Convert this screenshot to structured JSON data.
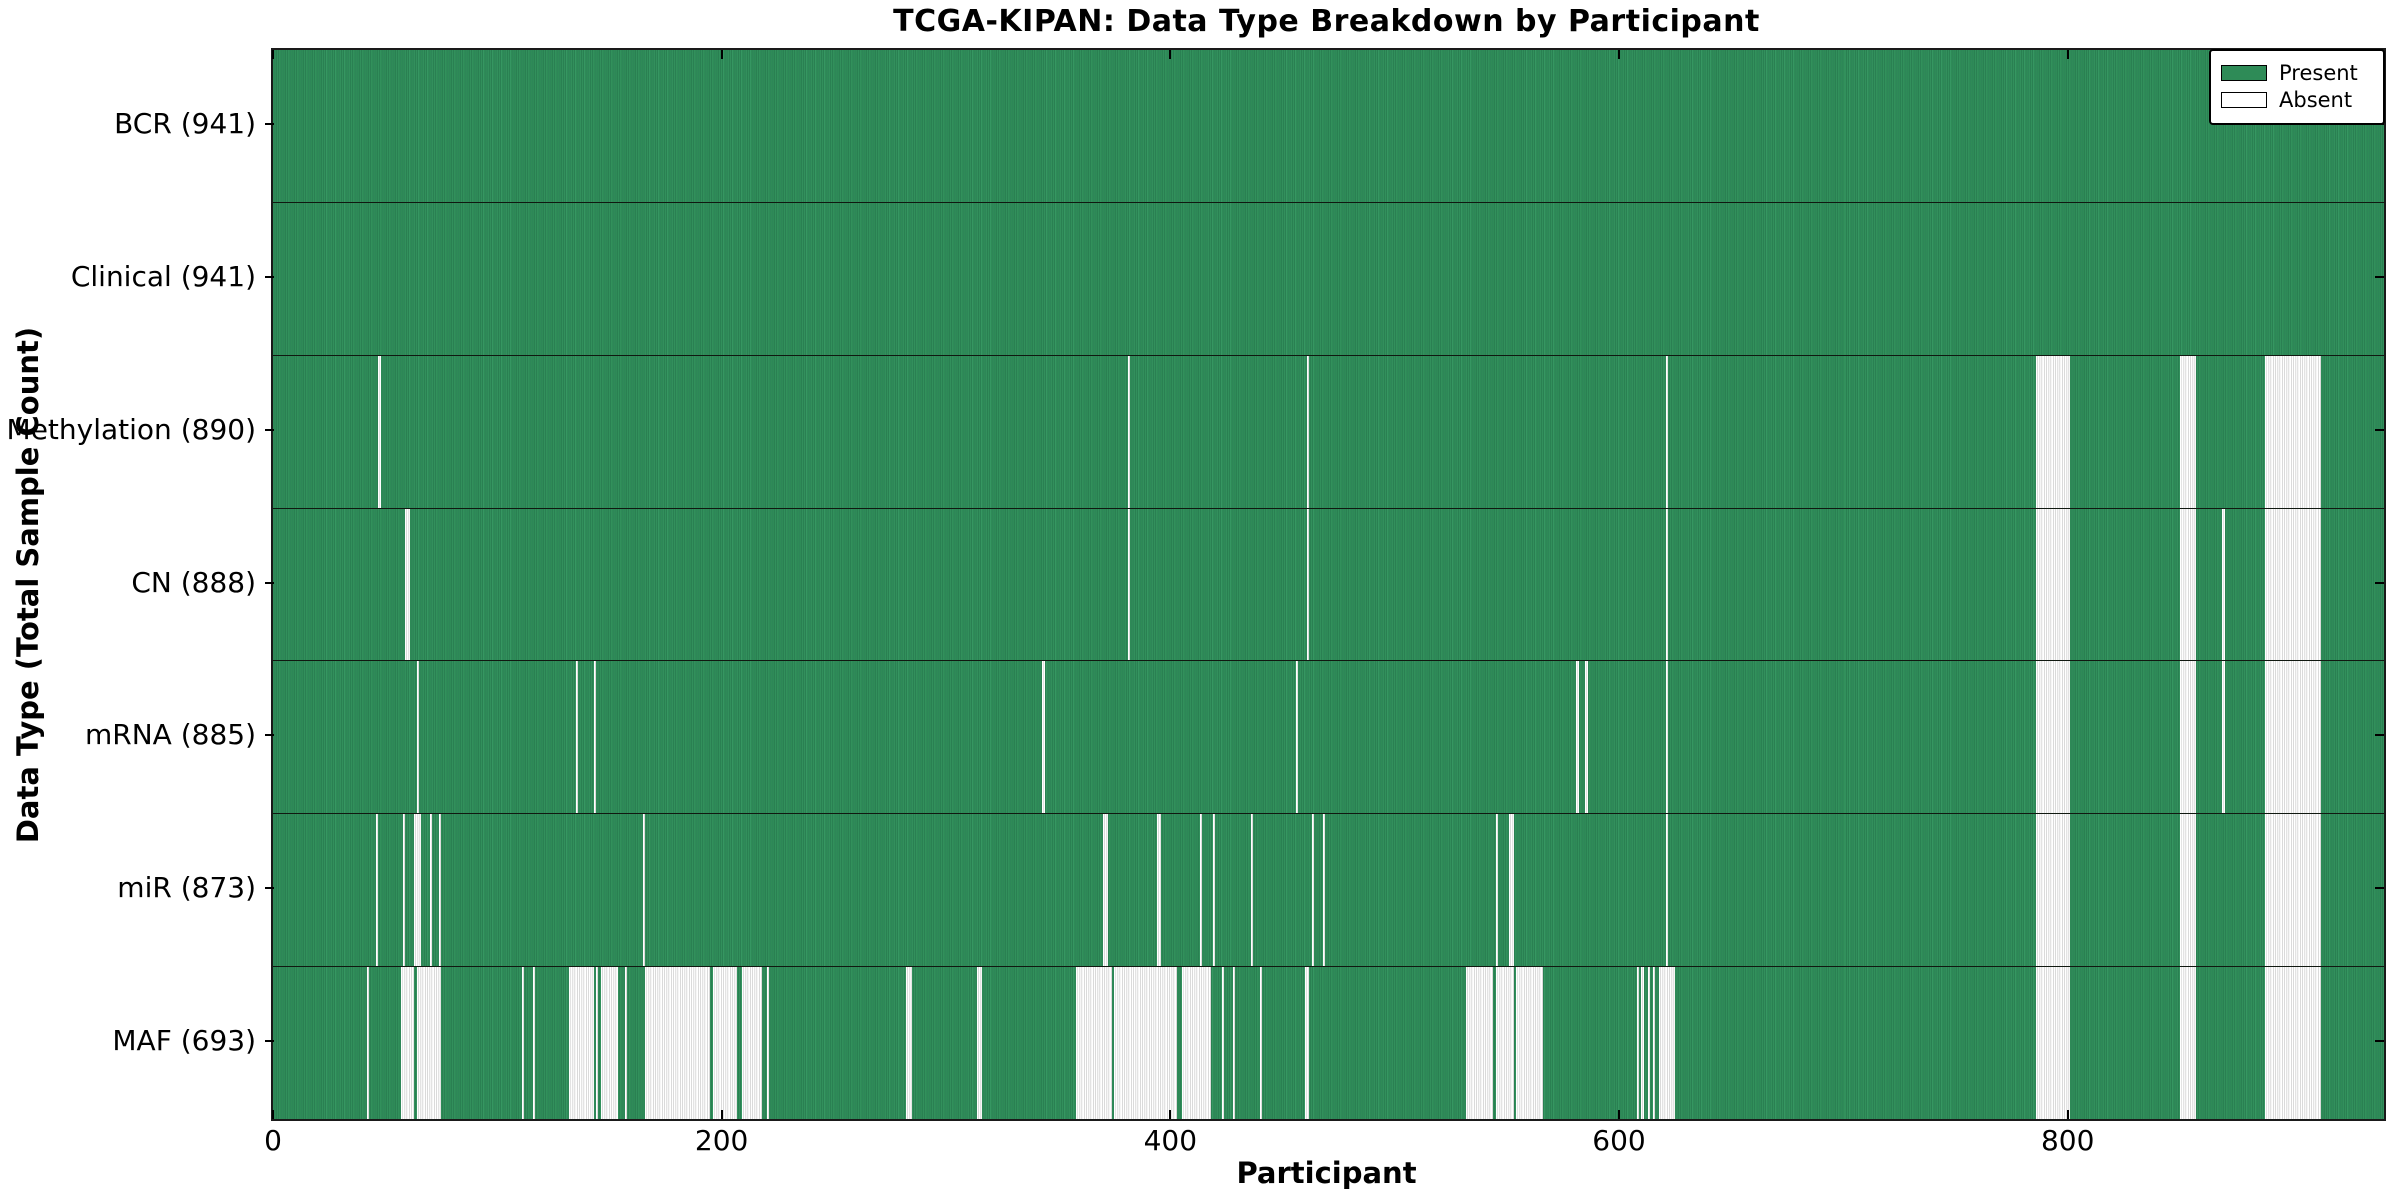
{
  "title": "TCGA-KIPAN: Data Type Breakdown by Participant",
  "x_axis": {
    "label": "Participant",
    "ticks": [
      0,
      200,
      400,
      600,
      800
    ],
    "min": 0,
    "max": 941
  },
  "y_axis": {
    "label": "Data Type (Total Sample Count)"
  },
  "legend": {
    "items": [
      {
        "label": "Present",
        "color": "#2e8b57"
      },
      {
        "label": "Absent",
        "color": "#ffffff"
      }
    ]
  },
  "colors": {
    "present": "#2e8b57",
    "absent": "#ffffff",
    "row_separator": "#101810",
    "spine": "#1a1a1a"
  },
  "chart_data": {
    "type": "heatmap",
    "xlabel": "Participant",
    "ylabel": "Data Type (Total Sample Count)",
    "x_range": [
      0,
      941
    ],
    "legend_position": "upper right",
    "description": "Presence (seagreen) or absence (white) of each data type per participant; rows ordered top to bottom.",
    "rows": [
      {
        "label": "BCR (941)",
        "name": "BCR",
        "present_count": 941,
        "absent_count": 0,
        "absent_ranges": []
      },
      {
        "label": "Clinical (941)",
        "name": "Clinical",
        "present_count": 941,
        "absent_count": 0,
        "absent_ranges": []
      },
      {
        "label": "Methylation (890)",
        "name": "Methylation",
        "present_count": 890,
        "absent_count": 51,
        "absent_ranges": [
          [
            47,
            48
          ],
          [
            381,
            382
          ],
          [
            461,
            462
          ],
          [
            621,
            622
          ],
          [
            786,
            801
          ],
          [
            850,
            857
          ],
          [
            888,
            913
          ]
        ]
      },
      {
        "label": "CN (888)",
        "name": "CN",
        "present_count": 888,
        "absent_count": 53,
        "absent_ranges": [
          [
            59,
            61
          ],
          [
            381,
            382
          ],
          [
            461,
            462
          ],
          [
            621,
            622
          ],
          [
            786,
            801
          ],
          [
            850,
            857
          ],
          [
            869,
            870
          ],
          [
            888,
            913
          ]
        ]
      },
      {
        "label": "mRNA (885)",
        "name": "mRNA",
        "present_count": 885,
        "absent_count": 56,
        "absent_ranges": [
          [
            64,
            65
          ],
          [
            135,
            136
          ],
          [
            143,
            144
          ],
          [
            343,
            344
          ],
          [
            456,
            457
          ],
          [
            581,
            582
          ],
          [
            585,
            586
          ],
          [
            621,
            622
          ],
          [
            786,
            801
          ],
          [
            850,
            857
          ],
          [
            869,
            870
          ],
          [
            888,
            913
          ]
        ]
      },
      {
        "label": "miR (873)",
        "name": "miR",
        "present_count": 873,
        "absent_count": 68,
        "absent_ranges": [
          [
            46,
            47
          ],
          [
            58,
            59
          ],
          [
            63,
            66
          ],
          [
            70,
            71
          ],
          [
            74,
            75
          ],
          [
            165,
            166
          ],
          [
            370,
            372
          ],
          [
            394,
            396
          ],
          [
            413,
            414
          ],
          [
            419,
            420
          ],
          [
            436,
            437
          ],
          [
            463,
            464
          ],
          [
            468,
            469
          ],
          [
            545,
            546
          ],
          [
            551,
            553
          ],
          [
            621,
            622
          ],
          [
            786,
            801
          ],
          [
            850,
            857
          ],
          [
            888,
            913
          ]
        ]
      },
      {
        "label": "MAF (693)",
        "name": "MAF",
        "present_count": 693,
        "absent_count": 248,
        "absent_ranges": [
          [
            42,
            43
          ],
          [
            57,
            63
          ],
          [
            64,
            75
          ],
          [
            111,
            112
          ],
          [
            116,
            117
          ],
          [
            132,
            143
          ],
          [
            144,
            145
          ],
          [
            146,
            154
          ],
          [
            157,
            158
          ],
          [
            166,
            195
          ],
          [
            196,
            207
          ],
          [
            209,
            218
          ],
          [
            220,
            221
          ],
          [
            282,
            285
          ],
          [
            314,
            316
          ],
          [
            358,
            374
          ],
          [
            375,
            403
          ],
          [
            405,
            418
          ],
          [
            423,
            424
          ],
          [
            428,
            429
          ],
          [
            440,
            441
          ],
          [
            460,
            462
          ],
          [
            532,
            544
          ],
          [
            545,
            553
          ],
          [
            554,
            566
          ],
          [
            608,
            609
          ],
          [
            610,
            611
          ],
          [
            613,
            614
          ],
          [
            615,
            616
          ],
          [
            618,
            625
          ],
          [
            786,
            801
          ],
          [
            850,
            857
          ],
          [
            888,
            913
          ]
        ]
      }
    ]
  }
}
